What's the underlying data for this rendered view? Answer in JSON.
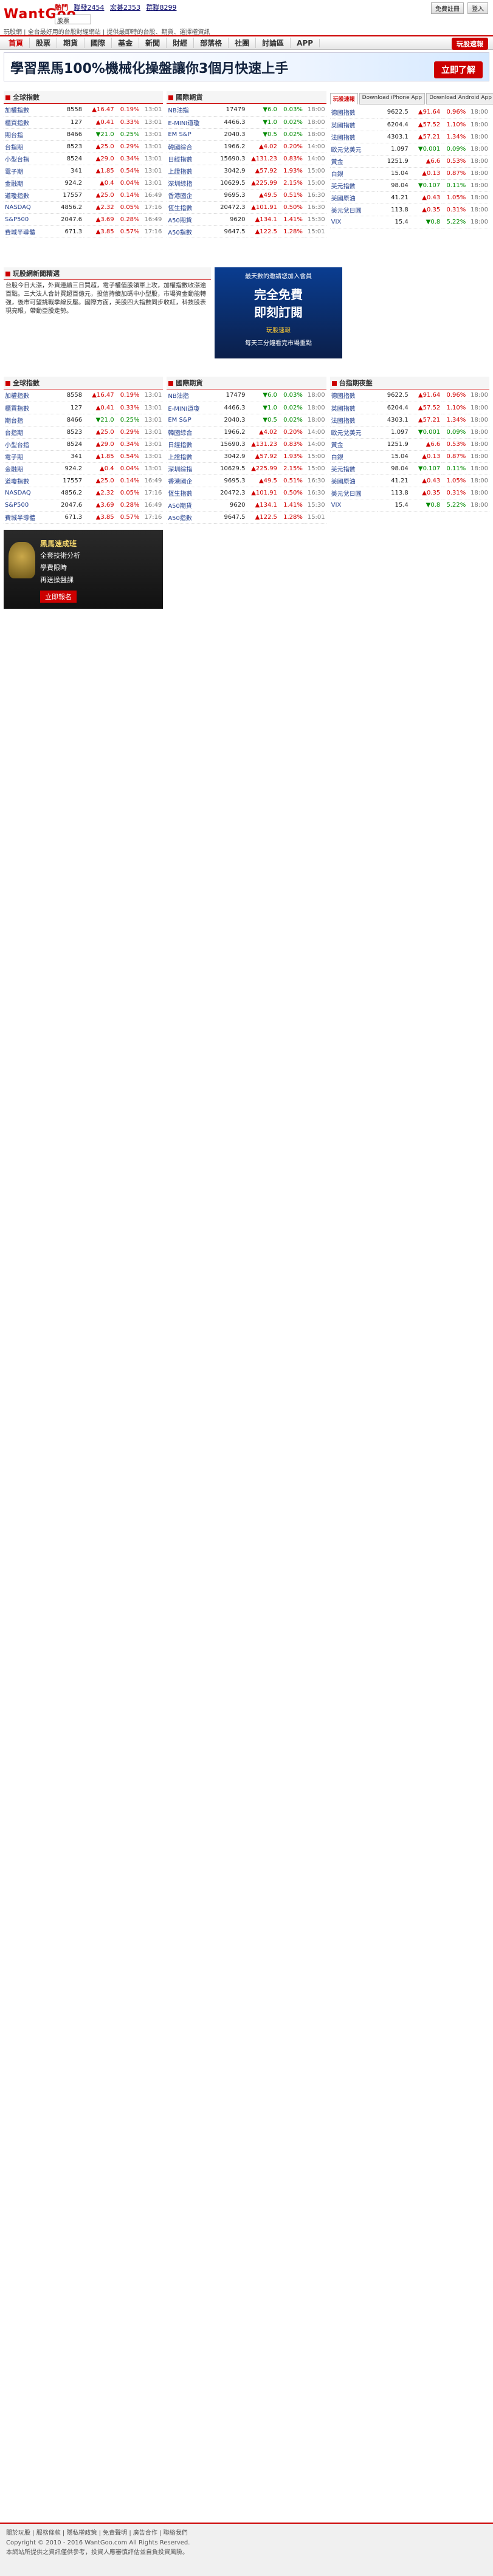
{
  "header": {
    "logo": "WantGoo",
    "hot_label": "熱門",
    "hot_stocks": [
      {
        "symbol": "聯發2454",
        "value": ""
      },
      {
        "symbol": "宏碁2353",
        "value": ""
      },
      {
        "symbol": "群聯8299",
        "value": ""
      }
    ],
    "search_value": "股票",
    "util": [
      "免費註冊",
      "登入"
    ],
    "tagline": "玩股網 | 全台最好用的台股財經網站 | 提供最即時的台股、期貨、選擇權資訊"
  },
  "nav": {
    "items": [
      "首頁",
      "股票",
      "期貨",
      "國際",
      "基金",
      "新聞",
      "財經",
      "部落格",
      "社團",
      "討論區",
      "APP"
    ],
    "app_button": "玩股速報"
  },
  "banner": {
    "headline": "學習黑馬100%機械化操盤讓你3個月快速上手",
    "cta": "立即了解"
  },
  "row1": {
    "col1": {
      "title": "全球指數",
      "rows": [
        {
          "name": "加權指數",
          "value": "8558",
          "change": "▲16.47",
          "pct": "0.19%",
          "time": "13:01",
          "dir": "up"
        },
        {
          "name": "櫃買指數",
          "value": "127",
          "change": "▲0.41",
          "pct": "0.33%",
          "time": "13:01",
          "dir": "up"
        },
        {
          "name": "期台指",
          "value": "8466",
          "change": "▼21.0",
          "pct": "0.25%",
          "time": "13:01",
          "dir": "dn"
        },
        {
          "name": "台指期",
          "value": "8523",
          "change": "▲25.0",
          "pct": "0.29%",
          "time": "13:01",
          "dir": "up"
        },
        {
          "name": "小型台指",
          "value": "8524",
          "change": "▲29.0",
          "pct": "0.34%",
          "time": "13:01",
          "dir": "up"
        },
        {
          "name": "電子期",
          "value": "341",
          "change": "▲1.85",
          "pct": "0.54%",
          "time": "13:01",
          "dir": "up"
        },
        {
          "name": "金融期",
          "value": "924.2",
          "change": "▲0.4",
          "pct": "0.04%",
          "time": "13:01",
          "dir": "up"
        },
        {
          "name": "道瓊指數",
          "value": "17557",
          "change": "▲25.0",
          "pct": "0.14%",
          "time": "16:49",
          "dir": "up"
        },
        {
          "name": "NASDAQ",
          "value": "4856.2",
          "change": "▲2.32",
          "pct": "0.05%",
          "time": "17:16",
          "dir": "up"
        },
        {
          "name": "S&P500",
          "value": "2047.6",
          "change": "▲3.69",
          "pct": "0.28%",
          "time": "16:49",
          "dir": "up"
        },
        {
          "name": "費城半導體",
          "value": "671.3",
          "change": "▲3.85",
          "pct": "0.57%",
          "time": "17:16",
          "dir": "up"
        }
      ]
    },
    "col2": {
      "title": "國際期貨",
      "rows": [
        {
          "name": "NB油指",
          "value": "17479",
          "change": "▼6.0",
          "pct": "0.03%",
          "time": "18:00",
          "dir": "dn"
        },
        {
          "name": "E-MINI道瓊",
          "value": "4466.3",
          "change": "▼1.0",
          "pct": "0.02%",
          "time": "18:00",
          "dir": "dn"
        },
        {
          "name": "EM S&P",
          "value": "2040.3",
          "change": "▼0.5",
          "pct": "0.02%",
          "time": "18:00",
          "dir": "dn"
        },
        {
          "name": "韓國綜合",
          "value": "1966.2",
          "change": "▲4.02",
          "pct": "0.20%",
          "time": "14:00",
          "dir": "up"
        },
        {
          "name": "日經指數",
          "value": "15690.3",
          "change": "▲131.23",
          "pct": "0.83%",
          "time": "14:00",
          "dir": "up"
        },
        {
          "name": "上證指數",
          "value": "3042.9",
          "change": "▲57.92",
          "pct": "1.93%",
          "time": "15:00",
          "dir": "up"
        },
        {
          "name": "深圳綜指",
          "value": "10629.5",
          "change": "▲225.99",
          "pct": "2.15%",
          "time": "15:00",
          "dir": "up"
        },
        {
          "name": "香港國企",
          "value": "9695.3",
          "change": "▲49.5",
          "pct": "0.51%",
          "time": "16:30",
          "dir": "up"
        },
        {
          "name": "恆生指數",
          "value": "20472.3",
          "change": "▲101.91",
          "pct": "0.50%",
          "time": "16:30",
          "dir": "up"
        },
        {
          "name": "A50期貨",
          "value": "9620",
          "change": "▲134.1",
          "pct": "1.41%",
          "time": "15:30",
          "dir": "up"
        },
        {
          "name": "A50指數",
          "value": "9647.5",
          "change": "▲122.5",
          "pct": "1.28%",
          "time": "15:01",
          "dir": "up"
        }
      ]
    },
    "col3": {
      "tabs": [
        "玩股速報",
        "Download iPhone App",
        "Download Android App"
      ],
      "title": "台指期夜盤",
      "rows": [
        {
          "name": "德國指數",
          "value": "9622.5",
          "change": "▲91.64",
          "pct": "0.96%",
          "time": "18:00",
          "dir": "up"
        },
        {
          "name": "英國指數",
          "value": "6204.4",
          "change": "▲57.52",
          "pct": "1.10%",
          "time": "18:00",
          "dir": "up"
        },
        {
          "name": "法國指數",
          "value": "4303.1",
          "change": "▲57.21",
          "pct": "1.34%",
          "time": "18:00",
          "dir": "up"
        },
        {
          "name": "歐元兌美元",
          "value": "1.097",
          "change": "▼0.001",
          "pct": "0.09%",
          "time": "18:00",
          "dir": "dn"
        },
        {
          "name": "黃金",
          "value": "1251.9",
          "change": "▲6.6",
          "pct": "0.53%",
          "time": "18:00",
          "dir": "up"
        },
        {
          "name": "白銀",
          "value": "15.04",
          "change": "▲0.13",
          "pct": "0.87%",
          "time": "18:00",
          "dir": "up"
        },
        {
          "name": "美元指數",
          "value": "98.04",
          "change": "▼0.107",
          "pct": "0.11%",
          "time": "18:00",
          "dir": "dn"
        },
        {
          "name": "美國原油",
          "value": "41.21",
          "change": "▲0.43",
          "pct": "1.05%",
          "time": "18:00",
          "dir": "up"
        },
        {
          "name": "美元兌日圓",
          "value": "113.8",
          "change": "▲0.35",
          "pct": "0.31%",
          "time": "18:00",
          "dir": "up"
        },
        {
          "name": "VIX",
          "value": "15.4",
          "change": "▼0.8",
          "pct": "5.22%",
          "time": "18:00",
          "dir": "dn"
        }
      ]
    }
  },
  "middle": {
    "garble_title": "玩股網新聞精選",
    "garble_text": "台股今日大漲，外資連續三日買超，電子權值股領軍上攻，加權指數收漲逾百點。三大法人合計買超百億元，投信持續加碼中小型股，市場資金動能轉強，後市可望挑戰季線反壓。國際方面，美股四大指數同步收紅，科技股表現亮眼，帶動亞股走勢。",
    "promo": {
      "l1": "最天數的邀請您加入會員",
      "l2": "完全免費",
      "l3": "即刻訂閱",
      "l4": "玩股速報",
      "l5": "每天三分鐘看完市場重點"
    }
  },
  "ad": {
    "a1": "黑馬速成班",
    "a2": "全套技術分析",
    "a3": "學費限時",
    "a4": "再送操盤課",
    "a5": "立即報名"
  },
  "footer": {
    "l1": "關於玩股 | 服務條款 | 隱私權政策 | 免責聲明 | 廣告合作 | 聯絡我們",
    "l2": "Copyright © 2010 - 2016 WantGoo.com All Rights Reserved.",
    "l3": "本網站所提供之資訊僅供參考，投資人應審慎評估並自負投資風險。"
  }
}
